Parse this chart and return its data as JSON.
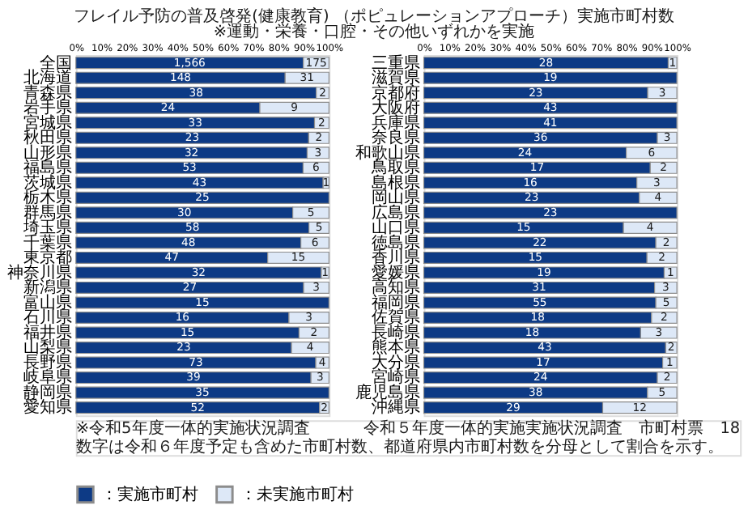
{
  "chart_data": [
    {
      "type": "bar",
      "orientation": "horizontal",
      "stacked": true,
      "legend": "bottom",
      "title": "フレイル予防の普及啓発(健康教育) （ポピュレーションアプローチ）実施市町村数",
      "subtitle": "※運動・栄養・口腔・その他いずれかを実施",
      "annotations": [
        "※令和5年度一体的実施状況調査",
        "数字は令和６年度予定も含めた市町村数、都道府県内市町村数を分母として割合を示す。",
        "令和５年度一体的実施実施状況調査　市町村票　18",
        {
          "text": "1,566",
          "x": 44.95,
          "y": "全国"
        },
        {
          "text": "175",
          "x": 94.95,
          "y": "全国"
        },
        {
          "text": "148",
          "x": 41.35,
          "y": "北海道"
        },
        {
          "text": "31",
          "x": 91.35,
          "y": "北海道"
        },
        {
          "text": "38",
          "x": 47.5,
          "y": "青森県"
        },
        {
          "text": "2",
          "x": 97.5,
          "y": "青森県"
        },
        {
          "text": "24",
          "x": 36.35,
          "y": "岩手県"
        },
        {
          "text": "9",
          "x": 86.35,
          "y": "岩手県"
        },
        {
          "text": "33",
          "x": 47.15,
          "y": "宮城県"
        },
        {
          "text": "2",
          "x": 97.15,
          "y": "宮城県"
        },
        {
          "text": "23",
          "x": 46,
          "y": "秋田県"
        },
        {
          "text": "2",
          "x": 96,
          "y": "秋田県"
        },
        {
          "text": "32",
          "x": 45.7,
          "y": "山形県"
        },
        {
          "text": "3",
          "x": 95.7,
          "y": "山形県"
        },
        {
          "text": "53",
          "x": 44.9,
          "y": "福島県"
        },
        {
          "text": "6",
          "x": 94.9,
          "y": "福島県"
        },
        {
          "text": "43",
          "x": 48.85,
          "y": "茨城県"
        },
        {
          "text": "1",
          "x": 98.85,
          "y": "茨城県"
        },
        {
          "text": "25",
          "x": 50,
          "y": "栃木県"
        },
        {
          "text": "30",
          "x": 42.85,
          "y": "群馬県"
        },
        {
          "text": "5",
          "x": 92.85,
          "y": "群馬県"
        },
        {
          "text": "58",
          "x": 46.05,
          "y": "埼玉県"
        },
        {
          "text": "5",
          "x": 96.05,
          "y": "埼玉県"
        },
        {
          "text": "48",
          "x": 44.45,
          "y": "千葉県"
        },
        {
          "text": "6",
          "x": 94.45,
          "y": "千葉県"
        },
        {
          "text": "47",
          "x": 37.9,
          "y": "東京都"
        },
        {
          "text": "15",
          "x": 87.9,
          "y": "東京都"
        },
        {
          "text": "32",
          "x": 48.5,
          "y": "神奈川県"
        },
        {
          "text": "1",
          "x": 98.5,
          "y": "神奈川県"
        },
        {
          "text": "27",
          "x": 45,
          "y": "新潟県"
        },
        {
          "text": "3",
          "x": 95,
          "y": "新潟県"
        },
        {
          "text": "15",
          "x": 50,
          "y": "富山県"
        },
        {
          "text": "16",
          "x": 42.1,
          "y": "石川県"
        },
        {
          "text": "3",
          "x": 92.1,
          "y": "石川県"
        },
        {
          "text": "15",
          "x": 44.1,
          "y": "福井県"
        },
        {
          "text": "2",
          "x": 94.1,
          "y": "福井県"
        },
        {
          "text": "23",
          "x": 42.6,
          "y": "山梨県"
        },
        {
          "text": "4",
          "x": 92.6,
          "y": "山梨県"
        },
        {
          "text": "73",
          "x": 47.4,
          "y": "長野県"
        },
        {
          "text": "4",
          "x": 97.4,
          "y": "長野県"
        },
        {
          "text": "39",
          "x": 46.45,
          "y": "岐阜県"
        },
        {
          "text": "3",
          "x": 96.45,
          "y": "岐阜県"
        },
        {
          "text": "35",
          "x": 50,
          "y": "静岡県"
        },
        {
          "text": "52",
          "x": 48.15,
          "y": "愛知県"
        },
        {
          "text": "2",
          "x": 98.15,
          "y": "愛知県"
        }
      ],
      "categories": [
        "全国",
        "北海道",
        "青森県",
        "岩手県",
        "宮城県",
        "秋田県",
        "山形県",
        "福島県",
        "茨城県",
        "栃木県",
        "群馬県",
        "埼玉県",
        "千葉県",
        "東京都",
        "神奈川県",
        "新潟県",
        "富山県",
        "石川県",
        "福井県",
        "山梨県",
        "長野県",
        "岐阜県",
        "静岡県",
        "愛知県"
      ],
      "xlim": [
        0,
        100
      ],
      "xticks": [
        {
          "value": 0,
          "label": "0%"
        },
        {
          "value": 10,
          "label": "10%"
        },
        {
          "value": 20,
          "label": "20%"
        },
        {
          "value": 30,
          "label": "30%"
        },
        {
          "value": 40,
          "label": "40%"
        },
        {
          "value": 50,
          "label": "50%"
        },
        {
          "value": 60,
          "label": "60%"
        },
        {
          "value": 70,
          "label": "70%"
        },
        {
          "value": 80,
          "label": "80%"
        },
        {
          "value": 90,
          "label": "90%"
        },
        {
          "value": 100,
          "label": "100%"
        }
      ],
      "series": [
        {
          "name": "：実施市町村",
          "color": "#0d3a85",
          "values": [
            89.9,
            82.7,
            95,
            72.7,
            94.3,
            92,
            91.4,
            89.8,
            97.7,
            100,
            85.7,
            92.1,
            88.9,
            75.8,
            97,
            90,
            100,
            84.2,
            88.2,
            85.2,
            94.8,
            92.9,
            100,
            96.3
          ]
        },
        {
          "name": "：未実施市町村",
          "color": "#dde8f7",
          "values": [
            10.1,
            17.3,
            5,
            27.3,
            5.7,
            8,
            8.6,
            10.2,
            2.3,
            null,
            14.3,
            7.9,
            11.1,
            24.2,
            3,
            10,
            null,
            15.8,
            11.8,
            14.8,
            5.2,
            7.1,
            null,
            3.7
          ]
        }
      ]
    },
    {
      "type": "bar",
      "orientation": "horizontal",
      "stacked": true,
      "legend": "bottom",
      "annotations": [
        {
          "text": "28",
          "x": 48.3,
          "y": "三重県"
        },
        {
          "text": "1",
          "x": 98.3,
          "y": "三重県"
        },
        {
          "text": "19",
          "x": 50,
          "y": "滋賀県"
        },
        {
          "text": "23",
          "x": 44.25,
          "y": "京都府"
        },
        {
          "text": "3",
          "x": 94.25,
          "y": "京都府"
        },
        {
          "text": "43",
          "x": 50,
          "y": "大阪府"
        },
        {
          "text": "41",
          "x": 50,
          "y": "兵庫県"
        },
        {
          "text": "36",
          "x": 46.15,
          "y": "奈良県"
        },
        {
          "text": "3",
          "x": 96.15,
          "y": "奈良県"
        },
        {
          "text": "24",
          "x": 40,
          "y": "和歌山県"
        },
        {
          "text": "6",
          "x": 90,
          "y": "和歌山県"
        },
        {
          "text": "17",
          "x": 44.75,
          "y": "鳥取県"
        },
        {
          "text": "2",
          "x": 94.75,
          "y": "鳥取県"
        },
        {
          "text": "16",
          "x": 42.1,
          "y": "島根県"
        },
        {
          "text": "3",
          "x": 92.1,
          "y": "島根県"
        },
        {
          "text": "23",
          "x": 42.6,
          "y": "岡山県"
        },
        {
          "text": "4",
          "x": 92.6,
          "y": "岡山県"
        },
        {
          "text": "23",
          "x": 50,
          "y": "広島県"
        },
        {
          "text": "15",
          "x": 39.45,
          "y": "山口県"
        },
        {
          "text": "4",
          "x": 89.45,
          "y": "山口県"
        },
        {
          "text": "22",
          "x": 45.85,
          "y": "徳島県"
        },
        {
          "text": "2",
          "x": 95.85,
          "y": "徳島県"
        },
        {
          "text": "15",
          "x": 44.1,
          "y": "香川県"
        },
        {
          "text": "2",
          "x": 94.1,
          "y": "香川県"
        },
        {
          "text": "19",
          "x": 47.5,
          "y": "愛媛県"
        },
        {
          "text": "1",
          "x": 97.5,
          "y": "愛媛県"
        },
        {
          "text": "31",
          "x": 45.6,
          "y": "高知県"
        },
        {
          "text": "3",
          "x": 95.6,
          "y": "高知県"
        },
        {
          "text": "55",
          "x": 45.85,
          "y": "福岡県"
        },
        {
          "text": "5",
          "x": 95.85,
          "y": "福岡県"
        },
        {
          "text": "18",
          "x": 45,
          "y": "佐賀県"
        },
        {
          "text": "2",
          "x": 95,
          "y": "佐賀県"
        },
        {
          "text": "18",
          "x": 42.85,
          "y": "長崎県"
        },
        {
          "text": "3",
          "x": 92.85,
          "y": "長崎県"
        },
        {
          "text": "43",
          "x": 47.8,
          "y": "熊本県"
        },
        {
          "text": "2",
          "x": 97.8,
          "y": "熊本県"
        },
        {
          "text": "17",
          "x": 47.2,
          "y": "大分県"
        },
        {
          "text": "1",
          "x": 97.2,
          "y": "大分県"
        },
        {
          "text": "24",
          "x": 46.15,
          "y": "宮崎県"
        },
        {
          "text": "2",
          "x": 96.15,
          "y": "宮崎県"
        },
        {
          "text": "38",
          "x": 44.2,
          "y": "鹿児島県"
        },
        {
          "text": "5",
          "x": 94.2,
          "y": "鹿児島県"
        },
        {
          "text": "29",
          "x": 35.35,
          "y": "沖縄県"
        },
        {
          "text": "12",
          "x": 85.35,
          "y": "沖縄県"
        }
      ],
      "categories": [
        "三重県",
        "滋賀県",
        "京都府",
        "大阪府",
        "兵庫県",
        "奈良県",
        "和歌山県",
        "鳥取県",
        "島根県",
        "岡山県",
        "広島県",
        "山口県",
        "徳島県",
        "香川県",
        "愛媛県",
        "高知県",
        "福岡県",
        "佐賀県",
        "長崎県",
        "熊本県",
        "大分県",
        "宮崎県",
        "鹿児島県",
        "沖縄県"
      ],
      "xlim": [
        0,
        100
      ],
      "xticks": [
        {
          "value": 0,
          "label": "0%"
        },
        {
          "value": 10,
          "label": "10%"
        },
        {
          "value": 20,
          "label": "20%"
        },
        {
          "value": 30,
          "label": "30%"
        },
        {
          "value": 40,
          "label": "40%"
        },
        {
          "value": 50,
          "label": "50%"
        },
        {
          "value": 60,
          "label": "60%"
        },
        {
          "value": 70,
          "label": "70%"
        },
        {
          "value": 80,
          "label": "80%"
        },
        {
          "value": 90,
          "label": "90%"
        },
        {
          "value": 100,
          "label": "100%"
        }
      ],
      "series": [
        {
          "name": "：実施市町村",
          "color": "#0d3a85",
          "values": [
            96.6,
            100,
            88.5,
            100,
            100,
            92.3,
            80,
            89.5,
            84.2,
            85.2,
            100,
            78.9,
            91.7,
            88.2,
            95,
            91.2,
            91.7,
            90,
            85.7,
            95.6,
            94.4,
            92.3,
            88.4,
            70.7
          ]
        },
        {
          "name": "：未実施市町村",
          "color": "#dde8f7",
          "values": [
            3.4,
            null,
            11.5,
            null,
            null,
            7.7,
            20,
            10.5,
            15.8,
            14.8,
            null,
            21.1,
            8.3,
            11.8,
            5,
            8.8,
            8.3,
            10,
            14.3,
            4.4,
            5.6,
            7.7,
            11.6,
            29.3
          ]
        }
      ]
    }
  ]
}
